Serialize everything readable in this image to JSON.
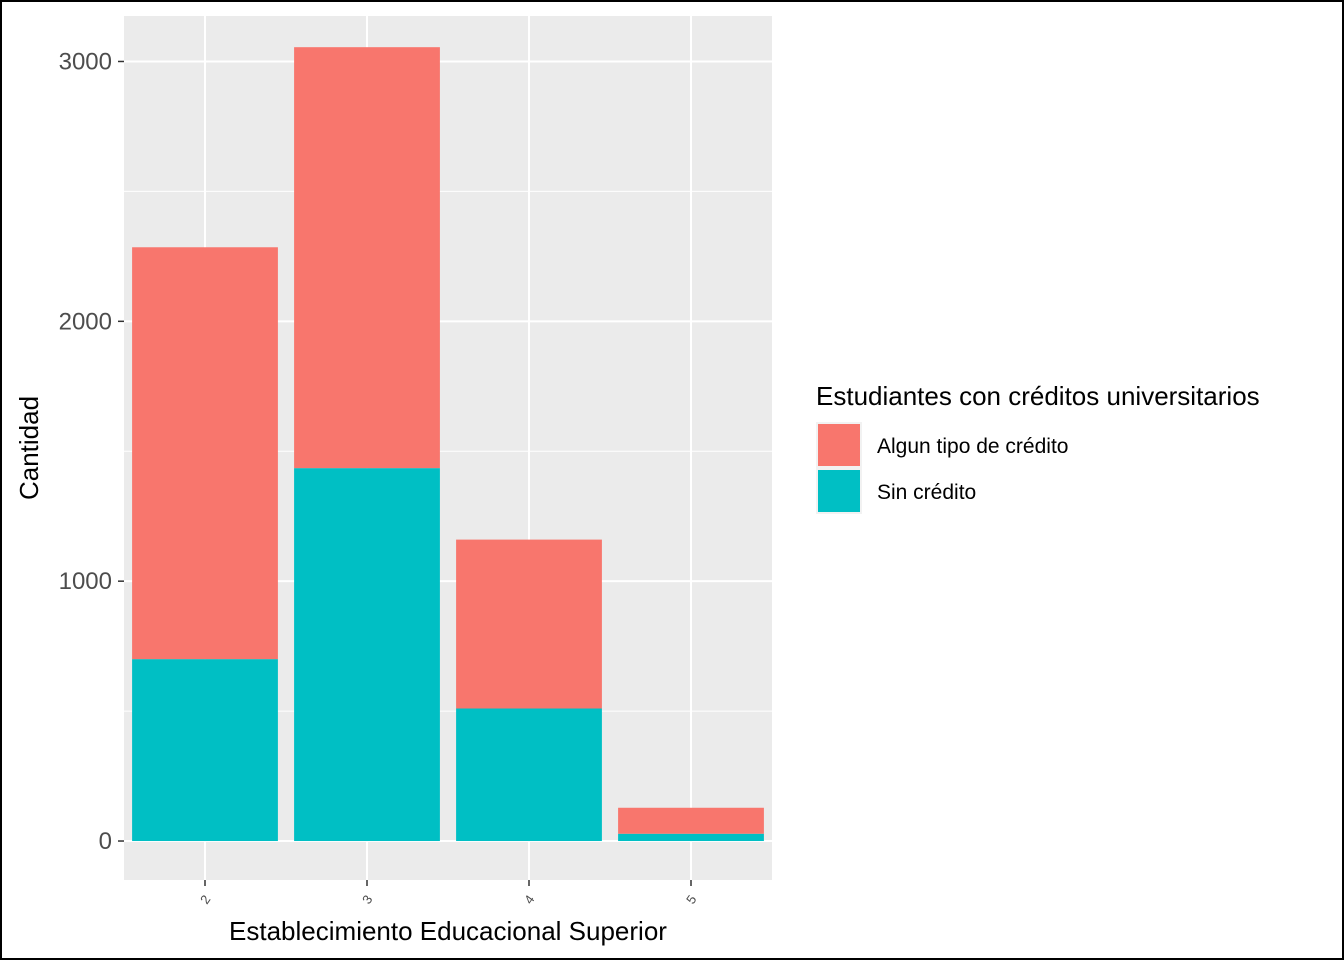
{
  "chart_data": {
    "type": "bar",
    "stacked": true,
    "categories": [
      "2",
      "3",
      "4",
      "5"
    ],
    "series": [
      {
        "name": "Algun tipo de crédito",
        "values": [
          1585,
          1620,
          650,
          100
        ],
        "color": "#F8766D"
      },
      {
        "name": "Sin crédito",
        "values": [
          700,
          1435,
          510,
          28
        ],
        "color": "#00BFC4"
      }
    ],
    "xlabel": "Establecimiento Educacional Superior",
    "ylabel": "Cantidad",
    "ylim": [
      -150,
      3175
    ],
    "yticks": [
      0,
      1000,
      2000,
      3000
    ],
    "yticks_labels": [
      "0",
      "1000",
      "2000",
      "3000"
    ],
    "ygrid_minor": [
      500,
      1500,
      2500
    ],
    "grid": true,
    "background": "#EBEBEB",
    "legend": {
      "title": "Estudiantes con créditos universitarios",
      "position": "right",
      "entries": [
        "Algun tipo de crédito",
        "Sin crédito"
      ]
    }
  }
}
